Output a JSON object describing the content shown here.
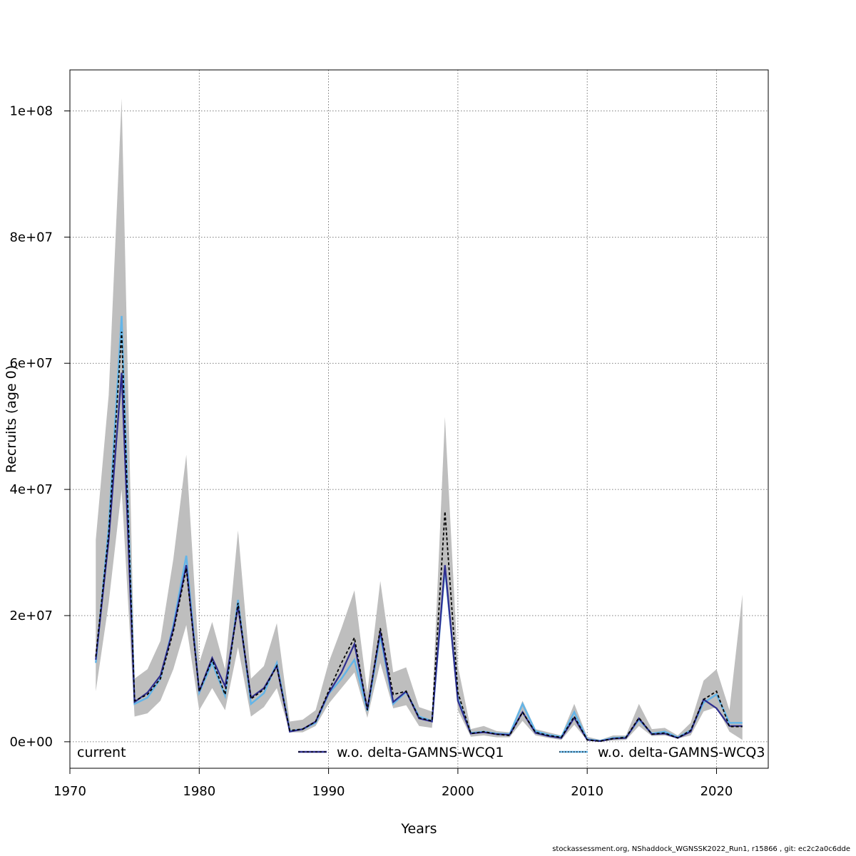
{
  "chart_data": {
    "type": "line",
    "xlabel": "Years",
    "ylabel": "Recruits (age 0)",
    "xlim": [
      1970,
      2024
    ],
    "ylim": [
      -4200000,
      106500000
    ],
    "x_ticks": [
      1970,
      1980,
      1990,
      2000,
      2010,
      2020
    ],
    "y_ticks": [
      0,
      20000000,
      40000000,
      60000000,
      80000000,
      100000000
    ],
    "y_tick_labels": [
      "0e+00",
      "2e+07",
      "4e+07",
      "6e+07",
      "8e+07",
      "1e+08"
    ],
    "grid": true,
    "legend_position": "bottom-inside",
    "legend": [
      "current",
      "w.o. delta-GAMNS-WCQ1",
      "w.o. delta-GAMNS-WCQ3"
    ],
    "x": [
      1972,
      1973,
      1974,
      1975,
      1976,
      1977,
      1978,
      1979,
      1980,
      1981,
      1982,
      1983,
      1984,
      1985,
      1986,
      1987,
      1988,
      1989,
      1990,
      1991,
      1992,
      1993,
      1994,
      1995,
      1996,
      1997,
      1998,
      1999,
      2000,
      2001,
      2002,
      2003,
      2004,
      2005,
      2006,
      2007,
      2008,
      2009,
      2010,
      2011,
      2012,
      2013,
      2014,
      2015,
      2016,
      2017,
      2018,
      2019,
      2020,
      2021,
      2022
    ],
    "band": {
      "name": "current",
      "color": "#bebebe",
      "lower": [
        8000000,
        22000000,
        40000000,
        4000000,
        4500000,
        6500000,
        11500000,
        18500000,
        5000000,
        8500000,
        5000000,
        15000000,
        4000000,
        5500000,
        8500000,
        1500000,
        1500000,
        2500000,
        6000000,
        8500000,
        11000000,
        3800000,
        12500000,
        5300000,
        5800000,
        2500000,
        2200000,
        26000000,
        5000000,
        800000,
        1000000,
        700000,
        700000,
        3300000,
        1000000,
        600000,
        300000,
        2700000,
        200000,
        50000,
        200000,
        300000,
        2500000,
        900000,
        1000000,
        500000,
        1000000,
        4800000,
        5500000,
        1600000,
        300000
      ],
      "upper": [
        32000000,
        55000000,
        102000000,
        10000000,
        11500000,
        16000000,
        29000000,
        45500000,
        12500000,
        19000000,
        11500000,
        33500000,
        10000000,
        12000000,
        18800000,
        3200000,
        3500000,
        5000000,
        12500000,
        18000000,
        24000000,
        7800000,
        25500000,
        11000000,
        11800000,
        5500000,
        4800000,
        51500000,
        12000000,
        2000000,
        2500000,
        1700000,
        1500000,
        6500000,
        2000000,
        1500000,
        1000000,
        6000000,
        800000,
        300000,
        1000000,
        1000000,
        6000000,
        2000000,
        2200000,
        1000000,
        3000000,
        9700000,
        11500000,
        5000000,
        23300000
      ]
    },
    "series": [
      {
        "name": "current",
        "color": "#000000",
        "style": "dashed",
        "values": [
          13500000,
          33000000,
          65000000,
          6500000,
          7500000,
          10000000,
          17500000,
          27500000,
          8000000,
          13000000,
          7500000,
          22000000,
          6800000,
          8300000,
          12000000,
          1800000,
          2000000,
          3200000,
          8000000,
          12500000,
          16500000,
          5000000,
          18000000,
          7500000,
          8000000,
          3800000,
          3300000,
          36500000,
          7800000,
          1300000,
          1600000,
          1200000,
          1000000,
          4700000,
          1500000,
          1000000,
          700000,
          4000000,
          300000,
          100000,
          500000,
          700000,
          3800000,
          1200000,
          1400000,
          600000,
          1800000,
          6700000,
          8000000,
          2400000,
          2400000
        ]
      },
      {
        "name": "w.o. delta-GAMNS-WCQ1",
        "color": "#2e2d8f",
        "style": "solid",
        "values": [
          13000000,
          32000000,
          58500000,
          6300000,
          7800000,
          10500000,
          18000000,
          28000000,
          8000000,
          13300000,
          8800000,
          21500000,
          7000000,
          8500000,
          12000000,
          1600000,
          2000000,
          3200000,
          7700000,
          11000000,
          15500000,
          5200000,
          17500000,
          6300000,
          8000000,
          3700000,
          3200000,
          28000000,
          6500000,
          1300000,
          1500000,
          1200000,
          1100000,
          4700000,
          1400000,
          900000,
          600000,
          3800000,
          300000,
          100000,
          500000,
          600000,
          3700000,
          1200000,
          1300000,
          600000,
          1600000,
          6700000,
          5300000,
          2500000,
          2500000
        ]
      },
      {
        "name": "w.o. delta-GAMNS-WCQ3",
        "color": "#64b5e8",
        "style": "dotted",
        "values": [
          12500000,
          34000000,
          67500000,
          6000000,
          7000000,
          10000000,
          18500000,
          29500000,
          7800000,
          12500000,
          7300000,
          22500000,
          6000000,
          7700000,
          12500000,
          1700000,
          2000000,
          3000000,
          7600000,
          10000000,
          13000000,
          4900000,
          16800000,
          6000000,
          7900000,
          4000000,
          3300000,
          27500000,
          6800000,
          1400000,
          1600000,
          1300000,
          1200000,
          6000000,
          1700000,
          1100000,
          800000,
          4700000,
          400000,
          150000,
          600000,
          700000,
          3500000,
          1300000,
          1600000,
          700000,
          1800000,
          6200000,
          7500000,
          3000000,
          3000000
        ]
      }
    ]
  },
  "footer": "stockassessment.org, NShaddock_WGNSSK2022_Run1, r15866 , git: ec2c2a0c6dde"
}
